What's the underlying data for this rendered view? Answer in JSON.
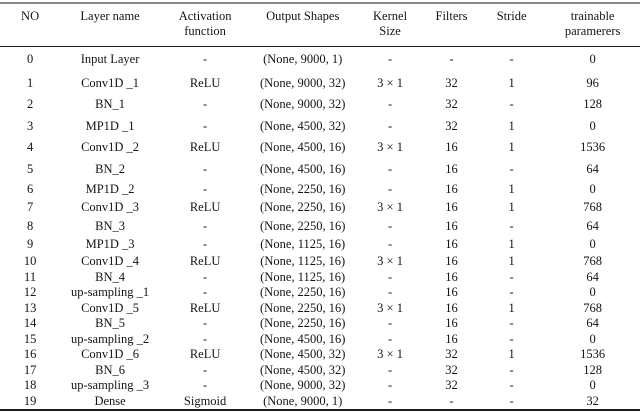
{
  "table": {
    "title_semantic": "cnn-autoencoder-architecture-table",
    "column_keys": [
      "no",
      "layer-name",
      "activation-function",
      "output-shapes",
      "kernel-size",
      "filters",
      "stride",
      "trainable-parameters"
    ],
    "columns": [
      {
        "line1": "NO",
        "line2": ""
      },
      {
        "line1": "Layer name",
        "line2": ""
      },
      {
        "line1": "Activation",
        "line2": "function"
      },
      {
        "line1": "Output Shapes",
        "line2": ""
      },
      {
        "line1": "Kernel",
        "line2": "Size"
      },
      {
        "line1": "Filters",
        "line2": ""
      },
      {
        "line1": "Stride",
        "line2": ""
      },
      {
        "line1": "trainable",
        "line2": "paramerers"
      }
    ],
    "rows": [
      [
        "0",
        "Input Layer",
        "-",
        "(None, 9000, 1)",
        "-",
        "-",
        "-",
        "0"
      ],
      [
        "1",
        "Conv1D _1",
        "ReLU",
        "(None, 9000, 32)",
        "3 × 1",
        "32",
        "1",
        "96"
      ],
      [
        "2",
        "BN_1",
        "-",
        "(None, 9000, 32)",
        "-",
        "32",
        "-",
        "128"
      ],
      [
        "3",
        "MP1D _1",
        "-",
        "(None, 4500, 32)",
        "-",
        "32",
        "1",
        "0"
      ],
      [
        "4",
        "Conv1D _2",
        "ReLU",
        "(None, 4500, 16)",
        "3 × 1",
        "16",
        "1",
        "1536"
      ],
      [
        "5",
        "BN_2",
        "-",
        "(None, 4500, 16)",
        "-",
        "16",
        "-",
        "64"
      ],
      [
        "6",
        "MP1D _2",
        "-",
        "(None, 2250, 16)",
        "-",
        "16",
        "1",
        "0"
      ],
      [
        "7",
        "Conv1D _3",
        "ReLU",
        "(None, 2250, 16)",
        "3 × 1",
        "16",
        "1",
        "768"
      ],
      [
        "8",
        "BN_3",
        "-",
        "(None, 2250, 16)",
        "-",
        "16",
        "-",
        "64"
      ],
      [
        "9",
        "MP1D _3",
        "-",
        "(None, 1125, 16)",
        "-",
        "16",
        "1",
        "0"
      ],
      [
        "10",
        "Conv1D _4",
        "ReLU",
        "(None, 1125, 16)",
        "3 × 1",
        "16",
        "1",
        "768"
      ],
      [
        "11",
        "BN_4",
        "-",
        "(None, 1125, 16)",
        "-",
        "16",
        "-",
        "64"
      ],
      [
        "12",
        "up-sampling _1",
        "-",
        "(None, 2250, 16)",
        "-",
        "16",
        "-",
        "0"
      ],
      [
        "13",
        "Conv1D _5",
        "ReLU",
        "(None, 2250, 16)",
        "3 × 1",
        "16",
        "1",
        "768"
      ],
      [
        "14",
        "BN_5",
        "-",
        "(None, 2250, 16)",
        "-",
        "16",
        "-",
        "64"
      ],
      [
        "15",
        "up-sampling _2",
        "-",
        "(None, 4500, 16)",
        "-",
        "16",
        "-",
        "0"
      ],
      [
        "16",
        "Conv1D _6",
        "ReLU",
        "(None, 4500, 32)",
        "3 × 1",
        "32",
        "1",
        "1536"
      ],
      [
        "17",
        "BN_6",
        "-",
        "(None, 4500, 32)",
        "-",
        "32",
        "-",
        "128"
      ],
      [
        "18",
        "up-sampling _3",
        "-",
        "(None, 9000, 32)",
        "-",
        "32",
        "-",
        "0"
      ],
      [
        "19",
        "Dense",
        "Sigmoid",
        "(None, 9000, 1)",
        "-",
        "-",
        "-",
        "32"
      ]
    ]
  }
}
